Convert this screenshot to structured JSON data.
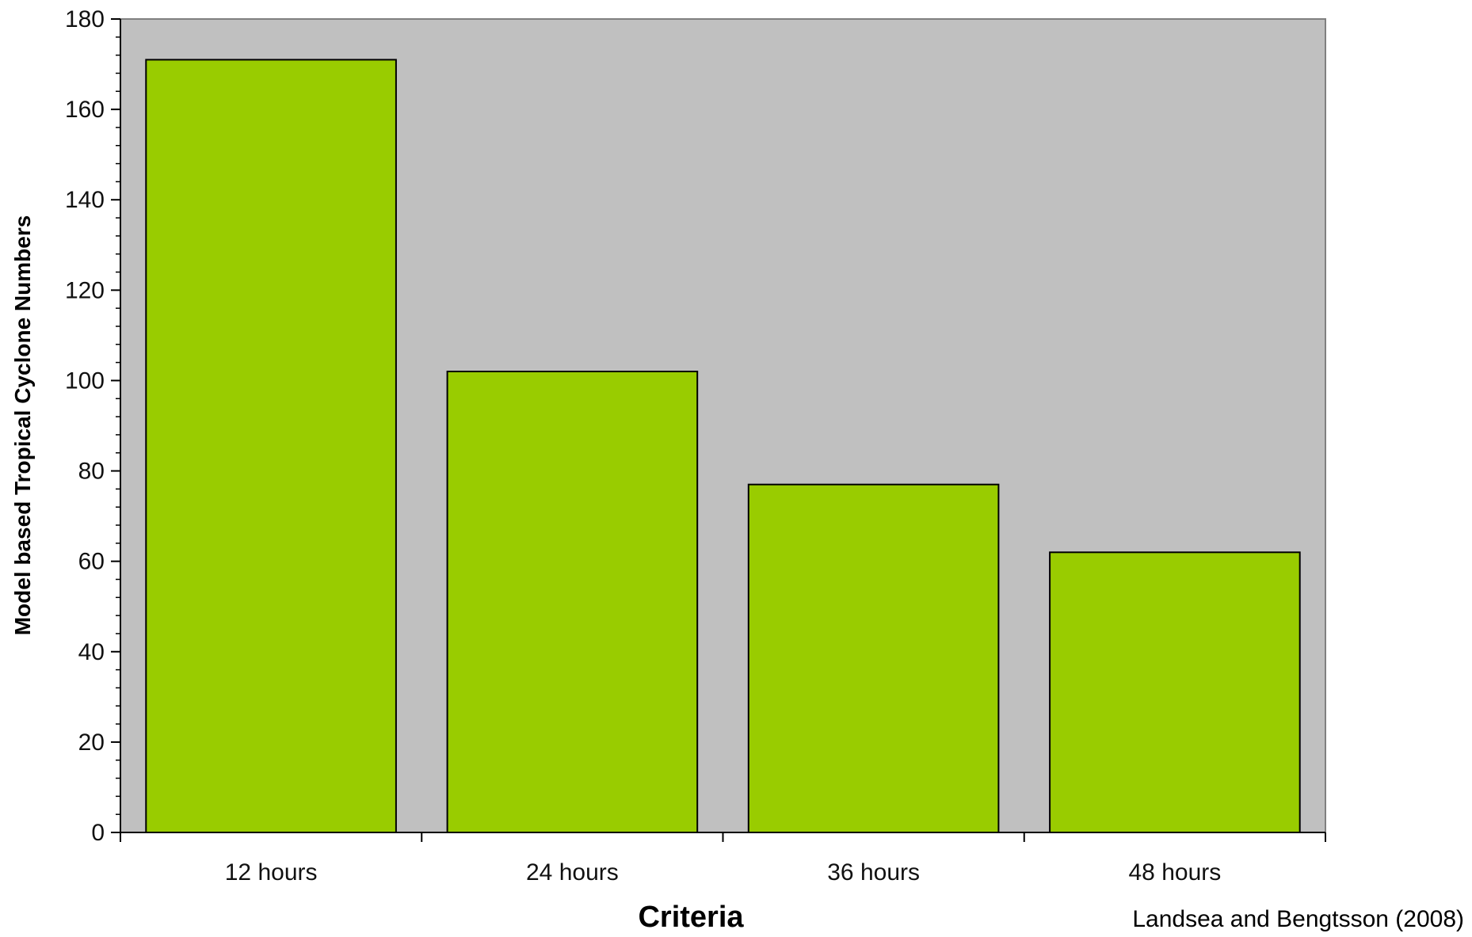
{
  "chart_data": {
    "type": "bar",
    "categories": [
      "12 hours",
      "24 hours",
      "36 hours",
      "48 hours"
    ],
    "values": [
      171,
      102,
      77,
      62
    ],
    "title": "",
    "xlabel": "Criteria",
    "ylabel": "Model based Tropical Cyclone Numbers",
    "ylim": [
      0,
      180
    ],
    "y_major_ticks": [
      0,
      20,
      40,
      60,
      80,
      100,
      120,
      140,
      160,
      180
    ],
    "y_minor_step": 4,
    "y_tick_labels": [
      "0",
      "20",
      "40",
      "60",
      "80",
      "100",
      "120",
      "140",
      "160",
      "180"
    ],
    "grid": false,
    "legend": "none",
    "colors": {
      "bar_fill": "#99cc00",
      "bar_stroke": "#000000",
      "plot_background": "#c0c0c0",
      "plot_border": "#808080",
      "axis": "#000000"
    }
  },
  "annotations": {
    "source": "Landsea and Bengtsson (2008)"
  }
}
